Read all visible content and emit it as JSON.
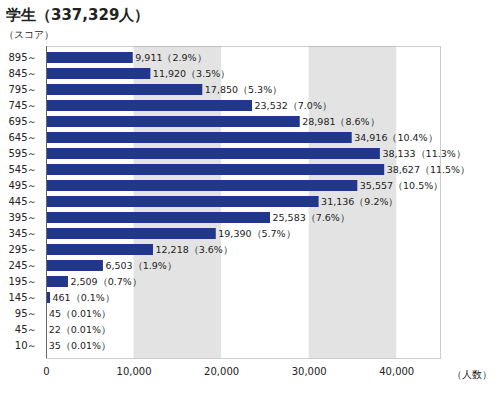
{
  "chart_data": {
    "type": "bar",
    "orientation": "horizontal",
    "title": "学生（337,329人）",
    "y_label": "（スコア）",
    "x_label": "（人数）",
    "categories": [
      "895～",
      "845～",
      "795～",
      "745～",
      "695～",
      "645～",
      "595～",
      "545～",
      "495～",
      "445～",
      "395～",
      "345～",
      "295～",
      "245～",
      "195～",
      "145～",
      "95～",
      "45～",
      "10～"
    ],
    "values": [
      9911,
      11920,
      17850,
      23532,
      28981,
      34916,
      38133,
      38627,
      35557,
      31136,
      25583,
      19390,
      12218,
      6503,
      2509,
      461,
      45,
      22,
      35
    ],
    "value_labels": [
      "9,911（2.9%）",
      "11,920（3.5%）",
      "17,850（5.3%）",
      "23,532（7.0%）",
      "28,981（8.6%）",
      "34,916（10.4%）",
      "38,133（11.3%）",
      "38,627（11.5%）",
      "35,557（10.5%）",
      "31,136（9.2%）",
      "25,583（7.6%）",
      "19,390（5.7%）",
      "12,218（3.6%）",
      "6,503（1.9%）",
      "2,509（0.7%）",
      "461（0.1%）",
      "45（0.01%）",
      "22（0.01%）",
      "35（0.01%）"
    ],
    "data_labels": true,
    "color": "#22368c",
    "xlim": [
      0,
      45000
    ],
    "xticks": [
      0,
      {
        "value": 10000,
        "label": "10,000"
      },
      {
        "value": 20000,
        "label": "20,000"
      },
      {
        "value": 30000,
        "label": "30,000"
      },
      {
        "value": 40000,
        "label": "40,000"
      }
    ],
    "grid": true
  }
}
